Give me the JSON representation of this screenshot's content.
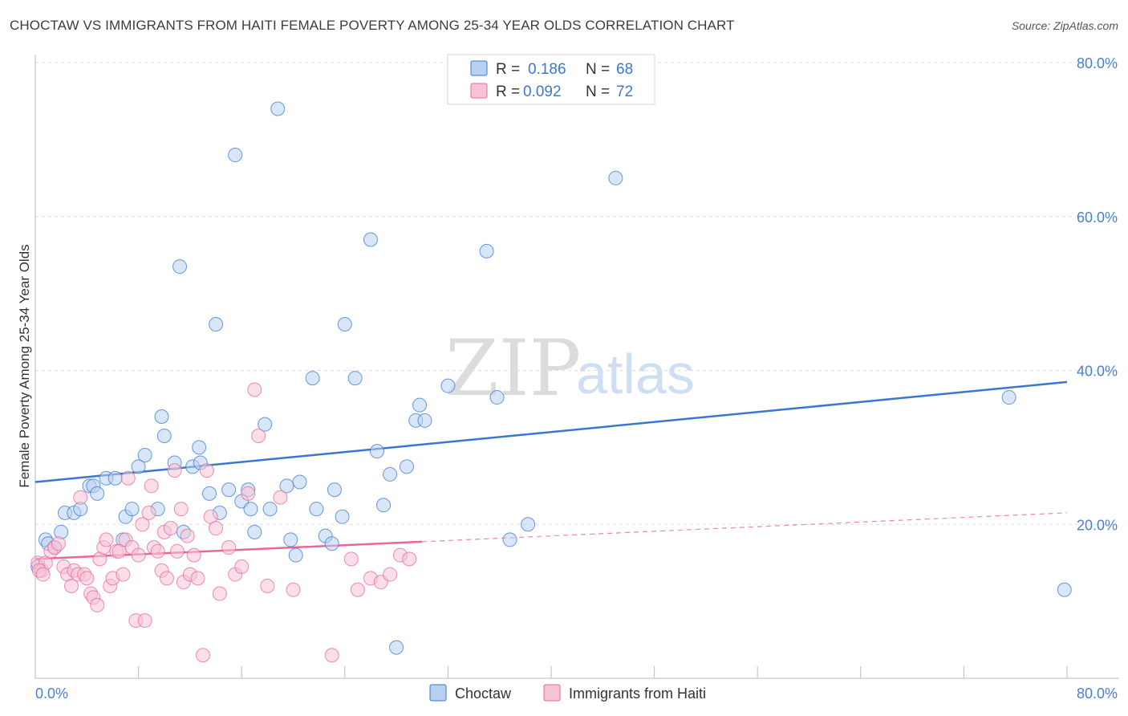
{
  "title": "CHOCTAW VS IMMIGRANTS FROM HAITI FEMALE POVERTY AMONG 25-34 YEAR OLDS CORRELATION CHART",
  "source": "Source: ZipAtlas.com",
  "watermark": {
    "zip": "ZIP",
    "atlas": "atlas"
  },
  "colors": {
    "blue": "#3a78cf",
    "blue_fill": "#b9d1f1",
    "pink": "#e8679a",
    "pink_fill": "#f6c3d6",
    "grid": "#dedede",
    "tick_label": "#4a7fd0"
  },
  "legend": {
    "r_label": "R =",
    "n_label": "N =",
    "rows": [
      {
        "r": "0.186",
        "n": "68",
        "color": "blue"
      },
      {
        "r": "0.092",
        "n": "72",
        "color": "pink"
      }
    ]
  },
  "bottom_legend": [
    {
      "label": "Choctaw",
      "color": "blue"
    },
    {
      "label": "Immigrants from Haiti",
      "color": "pink"
    }
  ],
  "chart_data": {
    "type": "scatter",
    "title": "CHOCTAW VS IMMIGRANTS FROM HAITI FEMALE POVERTY AMONG 25-34 YEAR OLDS CORRELATION CHART",
    "xlabel": "",
    "ylabel": "Female Poverty Among 25-34 Year Olds",
    "xlim": [
      0,
      80
    ],
    "ylim": [
      0,
      80
    ],
    "x_tick_labels": [
      {
        "value": 0,
        "label": "0.0%"
      },
      {
        "value": 80,
        "label": "80.0%"
      }
    ],
    "y_tick_labels": [
      {
        "value": 20,
        "label": "20.0%"
      },
      {
        "value": 40,
        "label": "40.0%"
      },
      {
        "value": 60,
        "label": "60.0%"
      },
      {
        "value": 80,
        "label": "80.0%"
      }
    ],
    "grid": true,
    "legend_position": "top-center",
    "series": [
      {
        "name": "Choctaw",
        "color": "blue",
        "trend": {
          "x0": 0,
          "y0": 25.5,
          "x1": 80,
          "y1": 38.5,
          "dashed_from": null
        },
        "points": [
          [
            0.2,
            14.5
          ],
          [
            0.8,
            18.0
          ],
          [
            1.0,
            17.5
          ],
          [
            1.5,
            17.0
          ],
          [
            2.0,
            19.0
          ],
          [
            2.3,
            21.5
          ],
          [
            3.0,
            21.5
          ],
          [
            3.5,
            22.0
          ],
          [
            4.2,
            25.0
          ],
          [
            4.5,
            25.0
          ],
          [
            4.8,
            24.0
          ],
          [
            5.5,
            26.0
          ],
          [
            6.2,
            26.0
          ],
          [
            6.8,
            18.0
          ],
          [
            7.0,
            21.0
          ],
          [
            7.5,
            22.0
          ],
          [
            8.0,
            27.5
          ],
          [
            8.5,
            29.0
          ],
          [
            9.5,
            22.0
          ],
          [
            9.8,
            34.0
          ],
          [
            10.0,
            31.5
          ],
          [
            10.8,
            28.0
          ],
          [
            11.2,
            53.5
          ],
          [
            11.5,
            19.0
          ],
          [
            12.2,
            27.5
          ],
          [
            12.7,
            30.0
          ],
          [
            12.8,
            28.0
          ],
          [
            13.5,
            24.0
          ],
          [
            14.0,
            46.0
          ],
          [
            14.3,
            21.5
          ],
          [
            15.0,
            24.5
          ],
          [
            15.5,
            68.0
          ],
          [
            16.0,
            23.0
          ],
          [
            16.5,
            24.5
          ],
          [
            16.7,
            22.0
          ],
          [
            17.0,
            19.0
          ],
          [
            17.8,
            33.0
          ],
          [
            18.2,
            22.0
          ],
          [
            18.8,
            74.0
          ],
          [
            19.5,
            25.0
          ],
          [
            19.8,
            18.0
          ],
          [
            20.2,
            16.0
          ],
          [
            20.5,
            25.5
          ],
          [
            21.5,
            39.0
          ],
          [
            21.8,
            22.0
          ],
          [
            22.5,
            18.5
          ],
          [
            23.0,
            17.5
          ],
          [
            23.2,
            24.5
          ],
          [
            23.8,
            21.0
          ],
          [
            24.0,
            46.0
          ],
          [
            24.8,
            39.0
          ],
          [
            26.0,
            57.0
          ],
          [
            26.5,
            29.5
          ],
          [
            27.0,
            22.5
          ],
          [
            27.5,
            26.5
          ],
          [
            28.0,
            4.0
          ],
          [
            28.8,
            27.5
          ],
          [
            29.5,
            33.5
          ],
          [
            29.8,
            35.5
          ],
          [
            30.2,
            33.5
          ],
          [
            32.0,
            38.0
          ],
          [
            35.0,
            55.5
          ],
          [
            35.8,
            36.5
          ],
          [
            36.8,
            18.0
          ],
          [
            38.2,
            20.0
          ],
          [
            45.0,
            65.0
          ],
          [
            75.5,
            36.5
          ],
          [
            79.8,
            11.5
          ]
        ]
      },
      {
        "name": "Immigrants from Haiti",
        "color": "pink",
        "trend": {
          "x0": 0,
          "y0": 15.5,
          "x1": 80,
          "y1": 21.5,
          "dashed_from": 30
        },
        "points": [
          [
            0.2,
            15.0
          ],
          [
            0.5,
            14.0
          ],
          [
            0.8,
            15.0
          ],
          [
            1.2,
            16.5
          ],
          [
            1.5,
            17.0
          ],
          [
            1.8,
            17.5
          ],
          [
            2.2,
            14.5
          ],
          [
            2.5,
            13.5
          ],
          [
            2.8,
            12.0
          ],
          [
            3.0,
            14.0
          ],
          [
            3.3,
            13.5
          ],
          [
            3.5,
            23.5
          ],
          [
            3.8,
            13.5
          ],
          [
            4.0,
            13.0
          ],
          [
            4.3,
            11.0
          ],
          [
            4.5,
            10.5
          ],
          [
            4.8,
            9.5
          ],
          [
            5.0,
            15.5
          ],
          [
            5.3,
            17.0
          ],
          [
            5.5,
            18.0
          ],
          [
            5.8,
            12.0
          ],
          [
            6.0,
            13.0
          ],
          [
            6.3,
            16.5
          ],
          [
            6.5,
            16.5
          ],
          [
            6.8,
            13.5
          ],
          [
            7.0,
            18.0
          ],
          [
            7.2,
            26.0
          ],
          [
            7.5,
            17.0
          ],
          [
            7.8,
            7.5
          ],
          [
            8.0,
            16.0
          ],
          [
            8.3,
            20.0
          ],
          [
            8.5,
            7.5
          ],
          [
            8.8,
            21.5
          ],
          [
            9.0,
            25.0
          ],
          [
            9.2,
            17.0
          ],
          [
            9.5,
            16.5
          ],
          [
            9.8,
            14.0
          ],
          [
            10.0,
            19.0
          ],
          [
            10.2,
            13.0
          ],
          [
            10.5,
            19.5
          ],
          [
            10.8,
            27.0
          ],
          [
            11.0,
            16.5
          ],
          [
            11.3,
            22.0
          ],
          [
            11.5,
            12.5
          ],
          [
            11.8,
            18.5
          ],
          [
            12.0,
            13.5
          ],
          [
            12.3,
            16.0
          ],
          [
            12.6,
            13.0
          ],
          [
            13.0,
            3.0
          ],
          [
            13.3,
            27.0
          ],
          [
            13.6,
            21.0
          ],
          [
            14.0,
            19.5
          ],
          [
            14.3,
            11.0
          ],
          [
            15.0,
            17.0
          ],
          [
            15.5,
            13.5
          ],
          [
            16.0,
            14.5
          ],
          [
            16.5,
            24.0
          ],
          [
            17.0,
            37.5
          ],
          [
            17.3,
            31.5
          ],
          [
            18.0,
            12.0
          ],
          [
            19.0,
            23.5
          ],
          [
            20.0,
            11.5
          ],
          [
            23.0,
            3.0
          ],
          [
            24.5,
            15.5
          ],
          [
            25.0,
            11.5
          ],
          [
            26.0,
            13.0
          ],
          [
            26.8,
            12.5
          ],
          [
            27.5,
            13.5
          ],
          [
            28.3,
            16.0
          ],
          [
            29.0,
            15.5
          ],
          [
            0.3,
            14.0
          ],
          [
            0.6,
            13.5
          ]
        ]
      }
    ]
  }
}
